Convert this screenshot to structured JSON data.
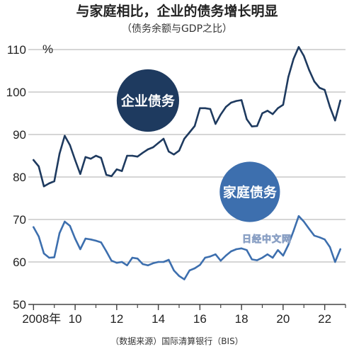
{
  "chart_data": {
    "type": "line",
    "title": "与家庭相比，企业的债务增长明显",
    "subtitle": "（债务余额与GDP之比）",
    "y_unit": "%",
    "ylim": [
      50,
      110
    ],
    "y_ticks": [
      50,
      60,
      70,
      80,
      90,
      100,
      110
    ],
    "x_ticks": [
      {
        "value": 2008,
        "label": "2008年"
      },
      {
        "value": 2010,
        "label": "10"
      },
      {
        "value": 2012,
        "label": "12"
      },
      {
        "value": 2014,
        "label": "14"
      },
      {
        "value": 2016,
        "label": "16"
      },
      {
        "value": 2018,
        "label": "18"
      },
      {
        "value": 2020,
        "label": "20"
      },
      {
        "value": 2022,
        "label": "22"
      }
    ],
    "xlim": [
      2007.75,
      2023.0
    ],
    "grid": "horizontal",
    "x": [
      2008.0,
      2008.25,
      2008.5,
      2008.75,
      2009.0,
      2009.25,
      2009.5,
      2009.75,
      2010.0,
      2010.25,
      2010.5,
      2010.75,
      2011.0,
      2011.25,
      2011.5,
      2011.75,
      2012.0,
      2012.25,
      2012.5,
      2012.75,
      2013.0,
      2013.25,
      2013.5,
      2013.75,
      2014.0,
      2014.25,
      2014.5,
      2014.75,
      2015.0,
      2015.25,
      2015.5,
      2015.75,
      2016.0,
      2016.25,
      2016.5,
      2016.75,
      2017.0,
      2017.25,
      2017.5,
      2017.75,
      2018.0,
      2018.25,
      2018.5,
      2018.75,
      2019.0,
      2019.25,
      2019.5,
      2019.75,
      2020.0,
      2020.25,
      2020.5,
      2020.75,
      2021.0,
      2021.25,
      2021.5,
      2021.75,
      2022.0,
      2022.25,
      2022.5,
      2022.75
    ],
    "series": [
      {
        "name": "企业债务",
        "color": "#1e3a5f",
        "values": [
          84.0,
          82.5,
          77.8,
          78.5,
          79.0,
          85.5,
          89.7,
          87.5,
          84.0,
          80.7,
          84.7,
          84.3,
          85.0,
          84.5,
          80.5,
          80.2,
          81.8,
          81.4,
          85.0,
          85.0,
          84.8,
          85.7,
          86.5,
          87.0,
          88.0,
          89.0,
          86.0,
          85.3,
          86.2,
          89.0,
          90.5,
          92.0,
          96.2,
          96.2,
          96.0,
          92.5,
          94.7,
          96.5,
          97.5,
          97.9,
          98.1,
          93.6,
          91.9,
          92.0,
          95.0,
          95.6,
          94.8,
          96.2,
          97.0,
          103.5,
          107.8,
          110.6,
          108.5,
          105.2,
          102.5,
          101.0,
          100.5,
          96.5,
          93.3,
          98.0
        ]
      },
      {
        "name": "家庭债务",
        "color": "#3d6fae",
        "values": [
          68.2,
          66.0,
          62.0,
          61.0,
          61.1,
          66.8,
          69.5,
          68.5,
          65.5,
          63.0,
          65.5,
          65.3,
          65.0,
          64.6,
          62.5,
          60.3,
          59.8,
          60.0,
          59.2,
          61.0,
          60.8,
          59.5,
          59.2,
          59.7,
          60.0,
          60.0,
          60.5,
          58.0,
          56.7,
          55.9,
          58.0,
          58.5,
          59.3,
          61.0,
          61.3,
          61.8,
          60.3,
          61.5,
          62.5,
          63.0,
          63.2,
          62.8,
          60.6,
          60.4,
          61.0,
          61.8,
          61.0,
          62.8,
          61.5,
          64.0,
          67.3,
          70.8,
          69.5,
          67.8,
          66.2,
          65.8,
          65.3,
          63.5,
          60.0,
          63.0
        ]
      }
    ],
    "series_labels": [
      {
        "text": "企业债务",
        "series": 0,
        "label_x": 2013.5,
        "label_y": 98.0,
        "r_data_x": 1.5
      },
      {
        "text": "家庭债务",
        "series": 1,
        "label_x": 2018.4,
        "label_y": 76.5,
        "r_data_x": 1.45
      }
    ]
  },
  "source": "（数据来源）国际清算银行（BIS）",
  "watermark": "日经中文网",
  "colors": {
    "background": "#ffffff",
    "grid": "#bdbdbd",
    "axis": "#444444"
  }
}
